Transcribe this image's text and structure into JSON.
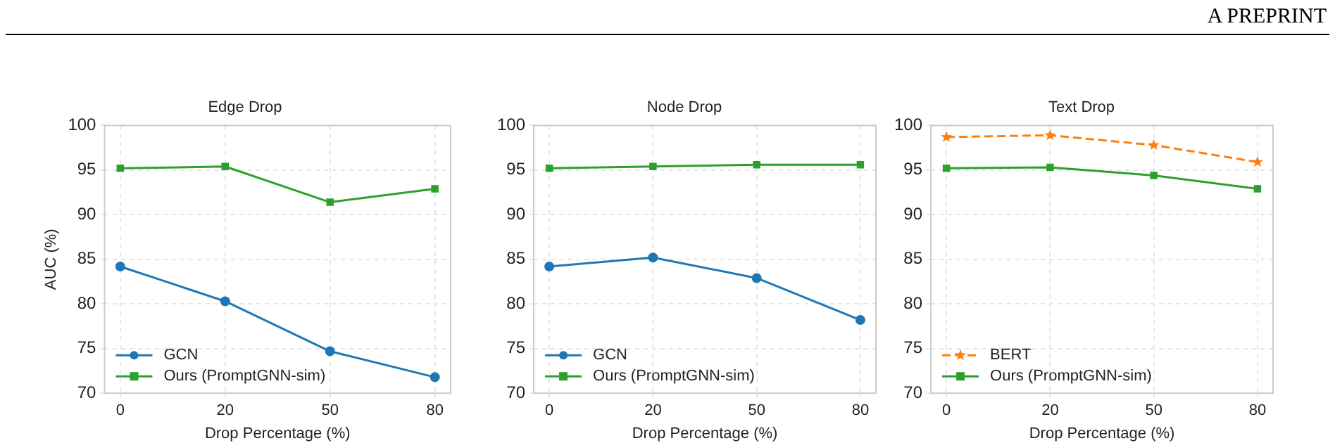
{
  "chart_data": [
    {
      "type": "line",
      "title": "Edge Drop",
      "xlabel": "Drop Percentage (%)",
      "ylabel": "AUC (%)",
      "categories": [
        "0",
        "20",
        "50",
        "80"
      ],
      "ylim": [
        70,
        100
      ],
      "yticks": [
        70,
        75,
        80,
        85,
        90,
        95,
        100
      ],
      "grid": true,
      "legend": "bottom left",
      "annotations": [
        "A PREPRINT"
      ],
      "series": [
        {
          "name": "GCN",
          "color": "#1f77b4",
          "marker": "circle",
          "line_style": "solid",
          "values": [
            84.2,
            80.3,
            74.7,
            71.8
          ]
        },
        {
          "name": "Ours (PromptGNN-sim)",
          "color": "#2ca02c",
          "marker": "square",
          "line_style": "solid",
          "values": [
            95.2,
            95.4,
            91.4,
            92.9
          ]
        }
      ]
    },
    {
      "type": "line",
      "title": "Node Drop",
      "xlabel": "Drop Percentage (%)",
      "categories": [
        "0",
        "20",
        "50",
        "80"
      ],
      "ylim": [
        70,
        100
      ],
      "yticks": [
        70,
        75,
        80,
        85,
        90,
        95,
        100
      ],
      "grid": true,
      "legend": "bottom left",
      "series": [
        {
          "name": "GCN",
          "color": "#1f77b4",
          "marker": "circle",
          "line_style": "solid",
          "values": [
            84.2,
            85.2,
            82.9,
            78.2
          ]
        },
        {
          "name": "Ours (PromptGNN-sim)",
          "color": "#2ca02c",
          "marker": "square",
          "line_style": "solid",
          "values": [
            95.2,
            95.4,
            95.6,
            95.6
          ]
        }
      ]
    },
    {
      "type": "line",
      "title": "Text Drop",
      "xlabel": "Drop Percentage (%)",
      "categories": [
        "0",
        "20",
        "50",
        "80"
      ],
      "ylim": [
        70,
        100
      ],
      "yticks": [
        70,
        75,
        80,
        85,
        90,
        95,
        100
      ],
      "grid": true,
      "legend": "bottom left",
      "series": [
        {
          "name": "BERT",
          "color": "#ff7f0e",
          "marker": "star",
          "line_style": "dashed",
          "values": [
            98.7,
            98.9,
            97.8,
            95.9
          ]
        },
        {
          "name": "Ours (PromptGNN-sim)",
          "color": "#2ca02c",
          "marker": "square",
          "line_style": "solid",
          "values": [
            95.2,
            95.3,
            94.4,
            92.9
          ]
        }
      ]
    }
  ]
}
